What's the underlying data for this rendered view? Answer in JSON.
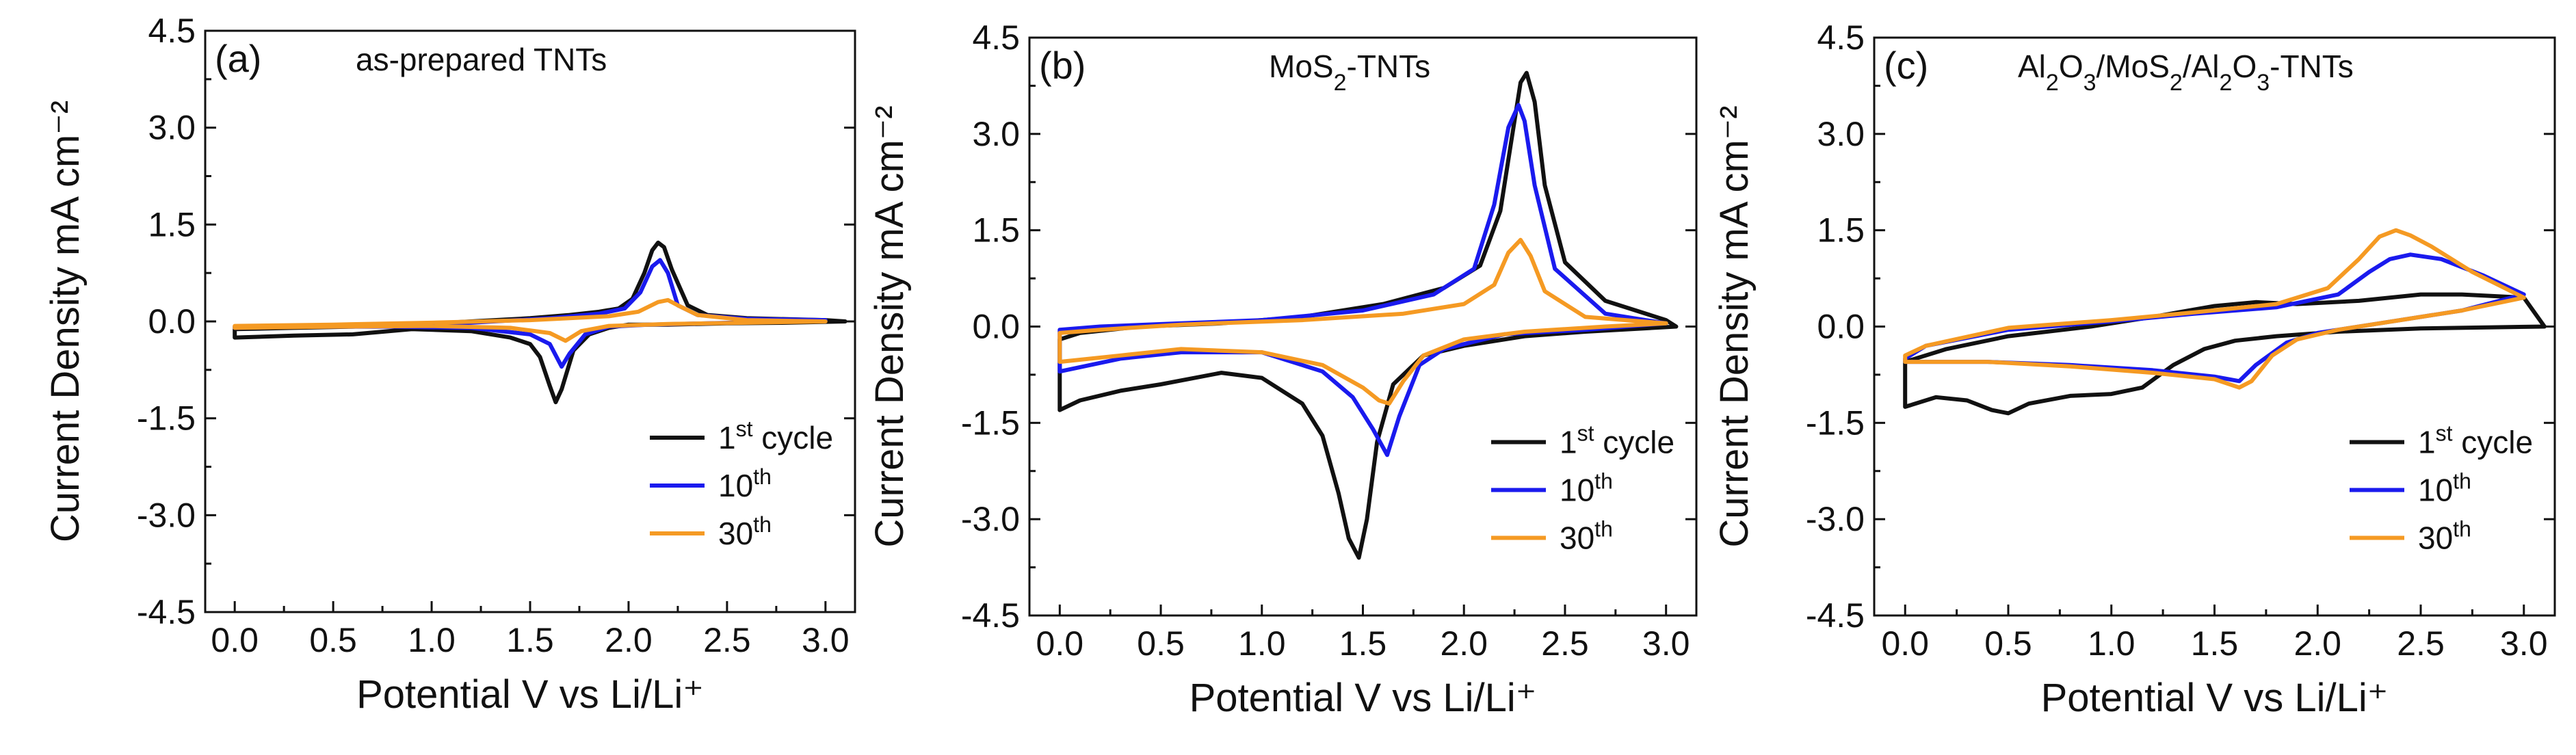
{
  "chart_data": [
    {
      "type": "line",
      "panel_label": "(a)",
      "title": "as-prepared TNTs",
      "xlabel": "Potential V vs Li/Li⁺",
      "ylabel": "Current Density mA cm⁻²",
      "xlim": [
        -0.15,
        3.15
      ],
      "ylim": [
        -4.5,
        4.5
      ],
      "xticks": [
        0.0,
        0.5,
        1.0,
        1.5,
        2.0,
        2.5,
        3.0
      ],
      "yticks": [
        -4.5,
        -3.0,
        -1.5,
        0.0,
        1.5,
        3.0,
        4.5
      ],
      "xtick_labels": [
        "0.0",
        "0.5",
        "1.0",
        "1.5",
        "2.0",
        "2.5",
        "3.0"
      ],
      "ytick_labels": [
        "-4.5",
        "-3.0",
        "-1.5",
        "0.0",
        "1.5",
        "3.0",
        "4.5"
      ],
      "legend_position": "bottom-right",
      "series": [
        {
          "name": "1st cycle",
          "name_main": "1",
          "name_sup": "st",
          "name_tail": " cycle",
          "color": "#111111",
          "x": [
            0.0,
            0.3,
            0.6,
            0.9,
            1.2,
            1.4,
            1.5,
            1.55,
            1.6,
            1.63,
            1.66,
            1.72,
            1.8,
            1.9,
            2.0,
            2.2,
            2.5,
            2.8,
            3.1,
            3.0,
            2.6,
            2.4,
            2.3,
            2.22,
            2.18,
            2.15,
            2.12,
            2.08,
            2.02,
            1.95,
            1.85,
            1.7,
            1.5,
            1.2,
            0.9,
            0.6,
            0.3,
            0.0,
            0.0
          ],
          "y": [
            -0.25,
            -0.22,
            -0.2,
            -0.12,
            -0.15,
            -0.25,
            -0.35,
            -0.55,
            -1.0,
            -1.25,
            -1.05,
            -0.45,
            -0.2,
            -0.1,
            -0.05,
            -0.05,
            -0.03,
            -0.02,
            0.0,
            0.02,
            0.05,
            0.1,
            0.25,
            0.8,
            1.15,
            1.22,
            1.1,
            0.75,
            0.35,
            0.2,
            0.15,
            0.1,
            0.05,
            0.0,
            -0.05,
            -0.08,
            -0.1,
            -0.12,
            -0.25
          ]
        },
        {
          "name": "10th",
          "name_main": "10",
          "name_sup": "th",
          "name_tail": "",
          "color": "#1a1aee",
          "x": [
            0.0,
            0.4,
            0.8,
            1.2,
            1.5,
            1.6,
            1.66,
            1.7,
            1.78,
            1.9,
            2.1,
            2.4,
            2.8,
            3.0,
            2.6,
            2.35,
            2.25,
            2.2,
            2.16,
            2.12,
            2.06,
            1.98,
            1.85,
            1.6,
            1.2,
            0.8,
            0.4,
            0.0,
            0.0
          ],
          "y": [
            -0.1,
            -0.08,
            -0.08,
            -0.1,
            -0.2,
            -0.35,
            -0.7,
            -0.5,
            -0.2,
            -0.08,
            -0.05,
            -0.03,
            0.0,
            0.02,
            0.04,
            0.1,
            0.25,
            0.75,
            0.95,
            0.85,
            0.45,
            0.2,
            0.12,
            0.05,
            -0.02,
            -0.05,
            -0.07,
            -0.08,
            -0.1
          ]
        },
        {
          "name": "30th",
          "name_main": "30",
          "name_sup": "th",
          "name_tail": "",
          "color": "#f59a23",
          "x": [
            0.0,
            0.5,
            1.0,
            1.4,
            1.6,
            1.68,
            1.76,
            1.9,
            2.2,
            2.6,
            3.0,
            2.6,
            2.35,
            2.25,
            2.2,
            2.15,
            2.05,
            1.9,
            1.5,
            1.0,
            0.5,
            0.0,
            0.0
          ],
          "y": [
            -0.1,
            -0.08,
            -0.07,
            -0.1,
            -0.18,
            -0.3,
            -0.15,
            -0.07,
            -0.04,
            -0.02,
            0.0,
            0.02,
            0.1,
            0.25,
            0.33,
            0.3,
            0.15,
            0.08,
            0.02,
            -0.02,
            -0.05,
            -0.07,
            -0.1
          ]
        }
      ]
    },
    {
      "type": "line",
      "panel_label": "(b)",
      "title": "MoS₂-TNTs",
      "xlabel": "Potential V vs Li/Li⁺",
      "ylabel": "Current Density mA cm⁻²",
      "xlim": [
        -0.15,
        3.15
      ],
      "ylim": [
        -4.5,
        4.5
      ],
      "xticks": [
        0.0,
        0.5,
        1.0,
        1.5,
        2.0,
        2.5,
        3.0
      ],
      "yticks": [
        -4.5,
        -3.0,
        -1.5,
        0.0,
        1.5,
        3.0,
        4.5
      ],
      "xtick_labels": [
        "0.0",
        "0.5",
        "1.0",
        "1.5",
        "2.0",
        "2.5",
        "3.0"
      ],
      "ytick_labels": [
        "-4.5",
        "-3.0",
        "-1.5",
        "0.0",
        "1.5",
        "3.0",
        "4.5"
      ],
      "legend_position": "bottom-right",
      "series": [
        {
          "name": "1st cycle",
          "name_main": "1",
          "name_sup": "st",
          "name_tail": " cycle",
          "color": "#111111",
          "x": [
            0.0,
            0.1,
            0.3,
            0.5,
            0.8,
            1.0,
            1.2,
            1.3,
            1.38,
            1.43,
            1.48,
            1.52,
            1.57,
            1.65,
            1.8,
            2.0,
            2.3,
            2.6,
            3.05,
            3.0,
            2.7,
            2.5,
            2.4,
            2.35,
            2.31,
            2.28,
            2.24,
            2.18,
            2.08,
            1.9,
            1.6,
            1.2,
            0.8,
            0.4,
            0.1,
            0.0,
            0.0
          ],
          "y": [
            -1.3,
            -1.15,
            -1.0,
            -0.9,
            -0.72,
            -0.8,
            -1.2,
            -1.7,
            -2.6,
            -3.3,
            -3.6,
            -3.0,
            -1.8,
            -0.9,
            -0.45,
            -0.3,
            -0.15,
            -0.08,
            0.0,
            0.1,
            0.4,
            1.0,
            2.2,
            3.5,
            3.95,
            3.8,
            3.0,
            1.8,
            0.95,
            0.6,
            0.35,
            0.15,
            0.05,
            0.0,
            -0.1,
            -0.2,
            -1.3
          ]
        },
        {
          "name": "10th",
          "name_main": "10",
          "name_sup": "th",
          "name_tail": "",
          "color": "#1a1aee",
          "x": [
            0.0,
            0.3,
            0.6,
            1.0,
            1.3,
            1.45,
            1.55,
            1.62,
            1.68,
            1.78,
            1.9,
            2.2,
            2.6,
            3.0,
            2.7,
            2.45,
            2.35,
            2.3,
            2.27,
            2.22,
            2.15,
            2.05,
            1.85,
            1.5,
            1.0,
            0.6,
            0.2,
            0.0,
            0.0
          ],
          "y": [
            -0.7,
            -0.5,
            -0.4,
            -0.4,
            -0.7,
            -1.1,
            -1.6,
            -2.0,
            -1.4,
            -0.6,
            -0.35,
            -0.12,
            -0.05,
            0.05,
            0.2,
            0.9,
            2.2,
            3.2,
            3.45,
            3.1,
            1.9,
            0.9,
            0.5,
            0.25,
            0.1,
            0.05,
            0.0,
            -0.05,
            -0.7
          ]
        },
        {
          "name": "30th",
          "name_main": "30",
          "name_sup": "th",
          "name_tail": "",
          "color": "#f59a23",
          "x": [
            0.0,
            0.3,
            0.6,
            1.0,
            1.3,
            1.5,
            1.58,
            1.63,
            1.7,
            1.8,
            2.0,
            2.3,
            2.7,
            3.0,
            2.6,
            2.4,
            2.33,
            2.28,
            2.22,
            2.15,
            2.0,
            1.7,
            1.2,
            0.6,
            0.2,
            0.0,
            0.0
          ],
          "y": [
            -0.55,
            -0.45,
            -0.35,
            -0.4,
            -0.6,
            -0.95,
            -1.15,
            -1.2,
            -0.85,
            -0.45,
            -0.2,
            -0.08,
            0.0,
            0.05,
            0.15,
            0.55,
            1.1,
            1.35,
            1.15,
            0.65,
            0.35,
            0.2,
            0.1,
            0.03,
            -0.05,
            -0.1,
            -0.55
          ]
        }
      ]
    },
    {
      "type": "line",
      "panel_label": "(c)",
      "title": "Al₂O₃/MoS₂/Al₂O₃-TNTs",
      "xlabel": "Potential V vs Li/Li⁺",
      "ylabel": "Current Density mA cm⁻²",
      "xlim": [
        -0.15,
        3.15
      ],
      "ylim": [
        -4.5,
        4.5
      ],
      "xticks": [
        0.0,
        0.5,
        1.0,
        1.5,
        2.0,
        2.5,
        3.0
      ],
      "yticks": [
        -4.5,
        -3.0,
        -1.5,
        0.0,
        1.5,
        3.0,
        4.5
      ],
      "xtick_labels": [
        "0.0",
        "0.5",
        "1.0",
        "1.5",
        "2.0",
        "2.5",
        "3.0"
      ],
      "ytick_labels": [
        "-4.5",
        "-3.0",
        "-1.5",
        "0.0",
        "1.5",
        "3.0",
        "4.5"
      ],
      "legend_position": "bottom-right",
      "series": [
        {
          "name": "1st cycle",
          "name_main": "1",
          "name_sup": "st",
          "name_tail": " cycle",
          "color": "#111111",
          "x": [
            0.0,
            0.15,
            0.3,
            0.42,
            0.5,
            0.6,
            0.8,
            1.0,
            1.15,
            1.3,
            1.45,
            1.6,
            1.8,
            2.1,
            2.5,
            2.9,
            3.1,
            3.0,
            2.7,
            2.5,
            2.2,
            1.9,
            1.7,
            1.5,
            1.2,
            0.9,
            0.5,
            0.2,
            0.0,
            0.0
          ],
          "y": [
            -1.25,
            -1.1,
            -1.15,
            -1.3,
            -1.35,
            -1.2,
            -1.08,
            -1.05,
            -0.95,
            -0.6,
            -0.35,
            -0.22,
            -0.15,
            -0.08,
            -0.03,
            -0.01,
            0.0,
            0.45,
            0.5,
            0.5,
            0.4,
            0.35,
            0.38,
            0.32,
            0.15,
            0.0,
            -0.15,
            -0.35,
            -0.55,
            -1.25
          ]
        },
        {
          "name": "10th",
          "name_main": "10",
          "name_sup": "th",
          "name_tail": "",
          "color": "#1a1aee",
          "x": [
            0.0,
            0.4,
            0.8,
            1.2,
            1.5,
            1.62,
            1.7,
            1.85,
            2.0,
            2.3,
            2.7,
            3.0,
            2.8,
            2.6,
            2.45,
            2.35,
            2.25,
            2.1,
            1.8,
            1.4,
            1.0,
            0.5,
            0.1,
            0.0,
            0.0
          ],
          "y": [
            -0.55,
            -0.55,
            -0.6,
            -0.68,
            -0.78,
            -0.85,
            -0.6,
            -0.25,
            -0.1,
            0.05,
            0.25,
            0.5,
            0.8,
            1.05,
            1.12,
            1.05,
            0.85,
            0.5,
            0.3,
            0.2,
            0.08,
            -0.05,
            -0.3,
            -0.5,
            -0.55
          ]
        },
        {
          "name": "30th",
          "name_main": "30",
          "name_sup": "th",
          "name_tail": "",
          "color": "#f59a23",
          "x": [
            0.0,
            0.4,
            0.8,
            1.2,
            1.5,
            1.62,
            1.68,
            1.78,
            1.9,
            2.1,
            2.4,
            2.7,
            3.0,
            2.75,
            2.55,
            2.45,
            2.38,
            2.3,
            2.2,
            2.05,
            1.8,
            1.4,
            1.0,
            0.5,
            0.1,
            0.0,
            0.0
          ],
          "y": [
            -0.55,
            -0.55,
            -0.62,
            -0.72,
            -0.82,
            -0.95,
            -0.85,
            -0.45,
            -0.2,
            -0.05,
            0.1,
            0.25,
            0.45,
            0.85,
            1.25,
            1.42,
            1.5,
            1.4,
            1.05,
            0.6,
            0.35,
            0.22,
            0.1,
            -0.02,
            -0.3,
            -0.45,
            -0.55
          ]
        }
      ]
    }
  ]
}
